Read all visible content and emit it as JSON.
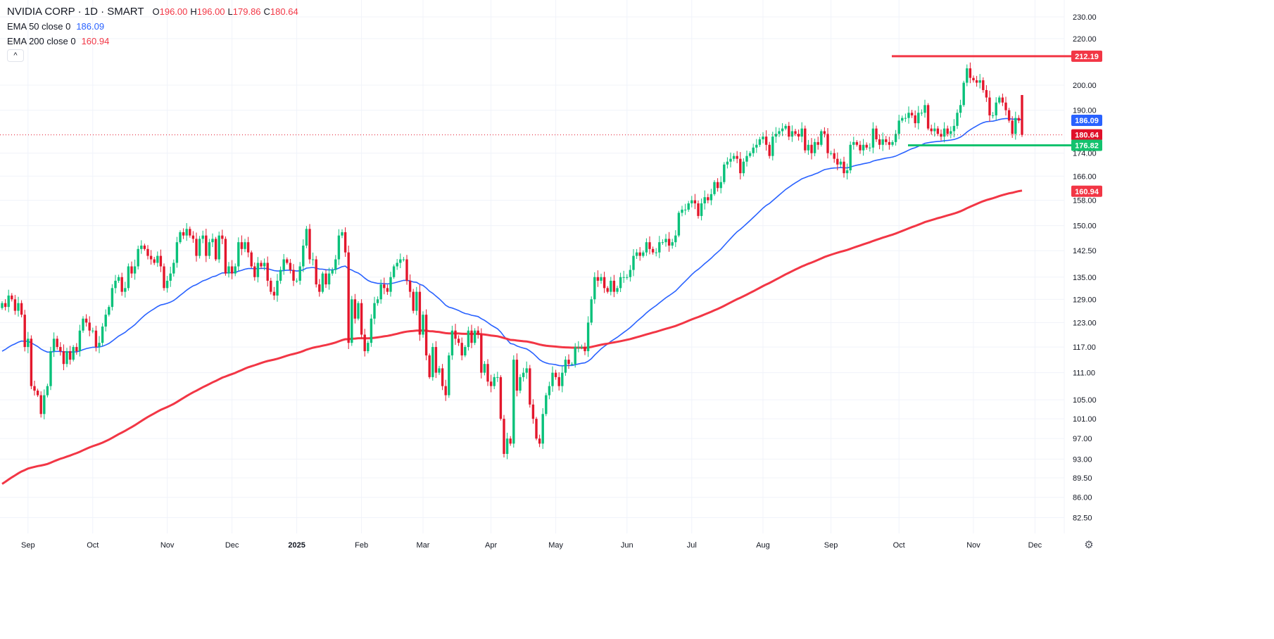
{
  "header": {
    "title": "NVIDIA CORP · 1D · SMART",
    "ohlc": {
      "o_label": "O",
      "o": "196.00",
      "h_label": "H",
      "h": "196.00",
      "l_label": "L",
      "l": "179.86",
      "c_label": "C",
      "c": "180.64"
    },
    "ema50": {
      "label": "EMA 50 close 0",
      "value": "186.09"
    },
    "ema200": {
      "label": "EMA 200 close 0",
      "value": "160.94"
    },
    "collapse_icon": "chevron-up-icon"
  },
  "colors": {
    "up": "#08c17a",
    "down": "#e3172c",
    "ema50": "#2962ff",
    "ema200": "#f23645",
    "support": "#13c26e",
    "resistance": "#f23645"
  },
  "chart_data": {
    "type": "candlestick",
    "symbol": "NVIDIA CORP",
    "interval": "1D",
    "yscale": "log",
    "ylim": [
      80,
      232
    ],
    "y_ticks": [
      "230.00",
      "220.00",
      "200.00",
      "190.00",
      "174.00",
      "166.00",
      "158.00",
      "150.00",
      "142.50",
      "135.00",
      "129.00",
      "123.00",
      "117.00",
      "111.00",
      "105.00",
      "101.00",
      "97.00",
      "93.00",
      "89.50",
      "86.00",
      "82.50"
    ],
    "x_ticks": [
      {
        "label": "Sep",
        "index": 8
      },
      {
        "label": "Oct",
        "index": 28
      },
      {
        "label": "Nov",
        "index": 51
      },
      {
        "label": "Dec",
        "index": 71
      },
      {
        "label": "2025",
        "index": 91,
        "bold": true
      },
      {
        "label": "Feb",
        "index": 111
      },
      {
        "label": "Mar",
        "index": 130
      },
      {
        "label": "Apr",
        "index": 151
      },
      {
        "label": "May",
        "index": 171
      },
      {
        "label": "Jun",
        "index": 193
      },
      {
        "label": "Jul",
        "index": 213
      },
      {
        "label": "Aug",
        "index": 235
      },
      {
        "label": "Sep",
        "index": 256
      },
      {
        "label": "Oct",
        "index": 277
      },
      {
        "label": "Nov",
        "index": 300
      },
      {
        "label": "Dec",
        "index": 319
      }
    ],
    "closes": [
      128,
      127,
      130,
      129,
      126,
      128,
      125,
      117,
      119,
      108,
      107,
      106,
      102,
      106,
      108,
      116,
      119,
      117,
      116,
      113,
      116,
      114,
      117,
      116,
      121,
      124,
      123,
      121,
      121,
      117,
      118,
      122,
      125,
      127,
      132,
      134,
      135,
      131,
      132,
      138,
      136,
      138,
      143,
      144,
      143,
      141,
      140,
      139,
      141,
      138,
      132,
      134,
      136,
      139,
      145,
      148,
      147,
      149,
      147,
      146,
      141,
      146,
      147,
      141,
      145,
      146,
      140,
      147,
      146,
      136,
      138,
      136,
      138,
      145,
      143,
      145,
      142,
      138,
      135,
      139,
      138,
      139,
      134,
      131,
      130,
      134,
      137,
      140,
      139,
      137,
      134,
      134,
      138,
      144,
      149,
      140,
      140,
      133,
      131,
      136,
      133,
      136,
      137,
      140,
      147,
      148,
      142,
      118,
      129,
      124,
      128,
      120,
      116,
      118,
      124,
      128,
      129,
      133,
      132,
      131,
      135,
      138,
      139,
      140,
      140,
      134,
      131,
      126,
      131,
      120,
      125,
      115,
      110,
      117,
      111,
      112,
      108,
      106,
      115,
      121,
      119,
      118,
      115,
      117,
      121,
      118,
      121,
      120,
      111,
      113,
      109,
      108,
      110,
      110,
      101,
      94,
      97,
      96,
      114,
      107,
      110,
      111,
      112,
      104,
      101,
      97,
      96,
      102,
      106,
      108,
      111,
      110,
      108,
      111,
      114,
      113,
      113,
      117,
      117,
      117,
      116,
      123,
      129,
      135,
      134,
      135,
      132,
      131,
      134,
      131,
      132,
      135,
      135,
      135,
      137,
      141,
      142,
      141,
      142,
      145,
      143,
      142,
      142,
      145,
      145,
      146,
      144,
      145,
      147,
      154,
      155,
      155,
      157,
      158,
      157,
      153,
      157,
      159,
      158,
      160,
      164,
      162,
      164,
      170,
      171,
      172,
      173,
      172,
      167,
      171,
      173,
      174,
      176,
      177,
      179,
      180,
      177,
      173,
      180,
      181,
      182,
      183,
      184,
      180,
      182,
      181,
      180,
      183,
      175,
      177,
      174,
      178,
      177,
      182,
      181,
      174,
      174,
      172,
      170,
      171,
      167,
      168,
      177,
      178,
      177,
      175,
      177,
      176,
      176,
      183,
      179,
      177,
      179,
      178,
      177,
      178,
      181,
      186,
      187,
      187,
      189,
      188,
      185,
      189,
      189,
      192,
      183,
      182,
      183,
      181,
      180,
      183,
      181,
      182,
      184,
      189,
      192,
      201,
      207,
      203,
      202,
      201,
      202,
      198,
      195,
      188,
      188,
      193,
      195,
      193,
      190,
      186,
      181,
      187,
      186,
      180.64
    ],
    "last_candle": {
      "open": 196.0,
      "high": 196.0,
      "low": 179.86,
      "close": 180.64
    },
    "indicators": [
      {
        "name": "EMA 50",
        "seed": 115.5,
        "period": 50,
        "last": 186.09
      },
      {
        "name": "EMA 200",
        "seed": 88,
        "period": 200,
        "last": 160.94
      }
    ],
    "horizontal_lines": [
      {
        "name": "resistance",
        "price": 212.19,
        "label": "212.19",
        "from_index": 275
      },
      {
        "name": "support",
        "price": 176.82,
        "label": "176.82",
        "from_index": 280
      }
    ],
    "price_labels": {
      "last": "180.64",
      "ema50": "186.09",
      "ema200": "160.94"
    }
  },
  "footer": {
    "settings_icon": "gear-icon"
  }
}
